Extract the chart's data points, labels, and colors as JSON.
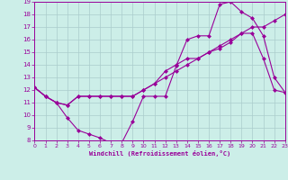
{
  "xlabel": "Windchill (Refroidissement éolien,°C)",
  "bg_color": "#cceee8",
  "line_color": "#990099",
  "grid_color": "#aacccc",
  "xmin": 0,
  "xmax": 23,
  "ymin": 8,
  "ymax": 19,
  "series1_x": [
    0,
    1,
    2,
    3,
    4,
    5,
    6,
    7,
    8,
    9,
    10,
    11,
    12,
    13,
    14,
    15,
    16,
    17,
    18,
    19,
    20,
    21,
    22,
    23
  ],
  "series1_y": [
    12.2,
    11.5,
    11.0,
    10.8,
    11.5,
    11.5,
    11.5,
    11.5,
    11.5,
    11.5,
    12.0,
    12.5,
    13.0,
    13.5,
    14.0,
    14.5,
    15.0,
    15.5,
    16.0,
    16.5,
    17.0,
    17.0,
    17.5,
    18.0
  ],
  "series2_x": [
    0,
    1,
    2,
    3,
    4,
    5,
    6,
    7,
    8,
    9,
    10,
    11,
    12,
    13,
    14,
    15,
    16,
    17,
    18,
    19,
    20,
    21,
    22,
    23
  ],
  "series2_y": [
    12.2,
    11.5,
    11.0,
    9.8,
    8.8,
    8.5,
    8.2,
    7.8,
    7.8,
    9.5,
    11.5,
    11.5,
    11.5,
    13.9,
    16.0,
    16.3,
    16.3,
    18.8,
    19.0,
    18.2,
    17.7,
    16.3,
    13.0,
    11.8
  ],
  "series3_x": [
    0,
    1,
    2,
    3,
    4,
    5,
    6,
    7,
    8,
    9,
    10,
    11,
    12,
    13,
    14,
    15,
    16,
    17,
    18,
    19,
    20,
    21,
    22,
    23
  ],
  "series3_y": [
    12.2,
    11.5,
    11.0,
    10.8,
    11.5,
    11.5,
    11.5,
    11.5,
    11.5,
    11.5,
    12.0,
    12.5,
    13.5,
    14.0,
    14.5,
    14.5,
    15.0,
    15.3,
    15.8,
    16.5,
    16.5,
    14.5,
    12.0,
    11.8
  ]
}
